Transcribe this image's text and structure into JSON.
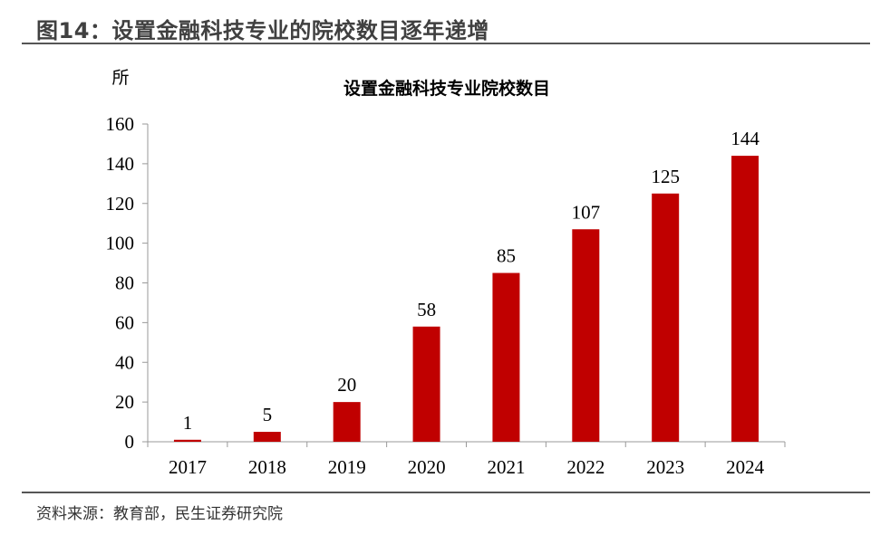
{
  "figure": {
    "title": "图14：设置金融科技专业的院校数目逐年递增",
    "source": "资料来源：教育部，民生证券研究院"
  },
  "chart_data": {
    "type": "bar",
    "title": "设置金融科技专业院校数目",
    "unit": "所",
    "categories": [
      "2017",
      "2018",
      "2019",
      "2020",
      "2021",
      "2022",
      "2023",
      "2024"
    ],
    "values": [
      1,
      5,
      20,
      58,
      85,
      107,
      125,
      144
    ],
    "ylim": [
      0,
      160
    ],
    "yticks": [
      0,
      20,
      40,
      60,
      80,
      100,
      120,
      140,
      160
    ],
    "bar_color": "#C00000",
    "grid": false,
    "legend": "none"
  }
}
